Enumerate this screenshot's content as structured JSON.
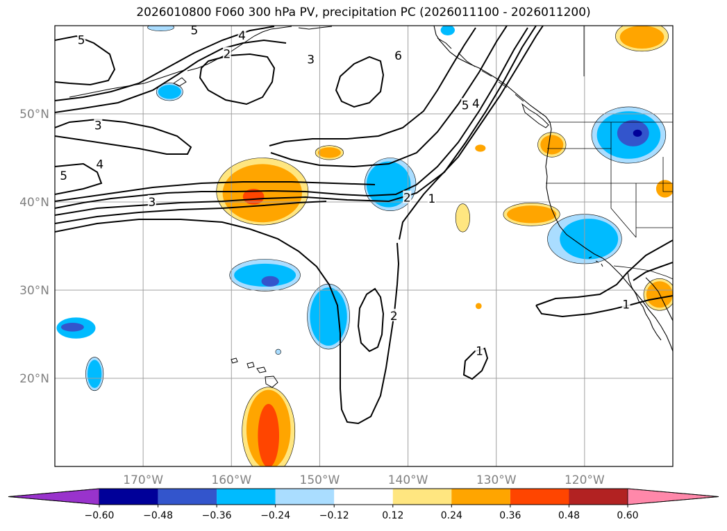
{
  "title": "2026010800 F060 300 hPa PV, precipitation PC (2026011100 - 2026011200)",
  "chart_data": {
    "type": "contour-map",
    "projection": "equirectangular",
    "lon_range": [
      -180,
      -110
    ],
    "lat_range": [
      10,
      60
    ],
    "grid": true,
    "lat_ticks": [
      {
        "lat": 50,
        "label": "50°N"
      },
      {
        "lat": 40,
        "label": "40°N"
      },
      {
        "lat": 30,
        "label": "30°N"
      },
      {
        "lat": 20,
        "label": "20°N"
      }
    ],
    "lon_ticks": [
      {
        "lon": -170,
        "label": "170°W"
      },
      {
        "lon": -160,
        "label": "160°W"
      },
      {
        "lon": -150,
        "label": "150°W"
      },
      {
        "lon": -140,
        "label": "140°W"
      },
      {
        "lon": -130,
        "label": "130°W"
      },
      {
        "lon": -120,
        "label": "120°W"
      }
    ],
    "colorbar": {
      "bounds": [
        -0.72,
        -0.6,
        -0.48,
        -0.36,
        -0.24,
        -0.12,
        0.12,
        0.24,
        0.36,
        0.48,
        0.6,
        0.72
      ],
      "colors": [
        "#9933cc",
        "#000099",
        "#3355cc",
        "#00bbff",
        "#aaddff",
        "#ffffff",
        "#ffe680",
        "#ffa500",
        "#ff4500",
        "#b22222",
        "#ff88aa"
      ],
      "extend": "both",
      "tick_values": [
        "−0.60",
        "−0.48",
        "−0.36",
        "−0.24",
        "−0.12",
        "0.12",
        "0.24",
        "0.36",
        "0.48",
        "0.60"
      ]
    },
    "pv_contour_labels": [
      {
        "text": "5",
        "lon": -177,
        "lat": 58.4
      },
      {
        "text": "5",
        "lon": -164.2,
        "lat": 59.5
      },
      {
        "text": "4",
        "lon": -158.8,
        "lat": 58.9
      },
      {
        "text": "2",
        "lon": -160.5,
        "lat": 56.8
      },
      {
        "text": "3",
        "lon": -151.0,
        "lat": 56.2
      },
      {
        "text": "6",
        "lon": -141.1,
        "lat": 56.6
      },
      {
        "text": "3",
        "lon": -175.1,
        "lat": 48.7
      },
      {
        "text": "4",
        "lon": -174.9,
        "lat": 44.3
      },
      {
        "text": "5",
        "lon": -179.0,
        "lat": 43.0
      },
      {
        "text": "3",
        "lon": -169.0,
        "lat": 40.0
      },
      {
        "text": "5",
        "lon": -133.5,
        "lat": 51.0
      },
      {
        "text": "4",
        "lon": -132.3,
        "lat": 51.2
      },
      {
        "text": "2",
        "lon": -140.1,
        "lat": 40.5
      },
      {
        "text": "1",
        "lon": -137.3,
        "lat": 40.4
      },
      {
        "text": "2",
        "lon": -141.6,
        "lat": 27.1
      },
      {
        "text": "1",
        "lon": -131.9,
        "lat": 23.1
      },
      {
        "text": "1",
        "lon": -115.3,
        "lat": 28.4
      }
    ],
    "precip_anomalies": [
      {
        "value": 0.3,
        "lon": -156.5,
        "lat": 41.0,
        "rlon": 4.5,
        "rlat": 3.3
      },
      {
        "value": 0.42,
        "lon": -157.5,
        "lat": 40.6,
        "rlon": 1.2,
        "rlat": 0.9
      },
      {
        "value": 0.18,
        "lon": -156.5,
        "lat": 41.2,
        "rlon": 5.2,
        "rlat": 3.8
      },
      {
        "value": -0.3,
        "lon": -142.2,
        "lat": 42.0,
        "rlon": 2.5,
        "rlat": 2.6
      },
      {
        "value": -0.18,
        "lon": -142.0,
        "lat": 42.0,
        "rlon": 2.9,
        "rlat": 3.0
      },
      {
        "value": -0.3,
        "lon": -149.0,
        "lat": 27.0,
        "rlon": 2.1,
        "rlat": 3.3
      },
      {
        "value": -0.18,
        "lon": -149.0,
        "lat": 27.0,
        "rlon": 2.4,
        "rlat": 3.7
      },
      {
        "value": -0.3,
        "lon": -156.2,
        "lat": 31.7,
        "rlon": 3.5,
        "rlat": 1.3
      },
      {
        "value": -0.42,
        "lon": -155.6,
        "lat": 31.0,
        "rlon": 1.0,
        "rlat": 0.6
      },
      {
        "value": -0.18,
        "lon": -156.2,
        "lat": 31.7,
        "rlon": 4.0,
        "rlat": 1.8
      },
      {
        "value": -0.3,
        "lon": -177.6,
        "lat": 25.7,
        "rlon": 2.2,
        "rlat": 1.2
      },
      {
        "value": -0.42,
        "lon": -178.0,
        "lat": 25.8,
        "rlon": 1.3,
        "rlat": 0.5
      },
      {
        "value": -0.3,
        "lon": -175.5,
        "lat": 20.5,
        "rlon": 0.8,
        "rlat": 1.6
      },
      {
        "value": -0.18,
        "lon": -175.5,
        "lat": 20.5,
        "rlon": 1.0,
        "rlat": 1.9
      },
      {
        "value": -0.3,
        "lon": -119.5,
        "lat": 35.8,
        "rlon": 3.3,
        "rlat": 2.3
      },
      {
        "value": -0.18,
        "lon": -120.0,
        "lat": 35.8,
        "rlon": 4.2,
        "rlat": 2.8
      },
      {
        "value": -0.3,
        "lon": -115.0,
        "lat": 47.6,
        "rlon": 3.6,
        "rlat": 2.7
      },
      {
        "value": -0.42,
        "lon": -114.5,
        "lat": 47.8,
        "rlon": 1.8,
        "rlat": 1.5
      },
      {
        "value": -0.54,
        "lon": -114.0,
        "lat": 47.8,
        "rlon": 0.5,
        "rlat": 0.4
      },
      {
        "value": -0.18,
        "lon": -115.0,
        "lat": 47.6,
        "rlon": 4.2,
        "rlat": 3.2
      },
      {
        "value": 0.3,
        "lon": -155.8,
        "lat": 14.2,
        "rlon": 2.5,
        "rlat": 4.5
      },
      {
        "value": 0.42,
        "lon": -155.8,
        "lat": 13.5,
        "rlon": 1.2,
        "rlat": 3.6
      },
      {
        "value": 0.18,
        "lon": -155.8,
        "lat": 14.0,
        "rlon": 3.0,
        "rlat": 5.0
      },
      {
        "value": 0.3,
        "lon": -126.0,
        "lat": 38.6,
        "rlon": 2.8,
        "rlat": 1.0
      },
      {
        "value": 0.18,
        "lon": -126.0,
        "lat": 38.6,
        "rlon": 3.2,
        "rlat": 1.3
      },
      {
        "value": 0.3,
        "lon": -111.5,
        "lat": 29.5,
        "rlon": 1.5,
        "rlat": 1.5
      },
      {
        "value": 0.18,
        "lon": -111.5,
        "lat": 29.5,
        "rlon": 1.8,
        "rlat": 1.8
      },
      {
        "value": 0.3,
        "lon": -113.5,
        "lat": 58.7,
        "rlon": 2.5,
        "rlat": 1.3
      },
      {
        "value": 0.18,
        "lon": -113.5,
        "lat": 58.8,
        "rlon": 3.0,
        "rlat": 1.7
      },
      {
        "value": 0.3,
        "lon": -123.7,
        "lat": 46.5,
        "rlon": 1.3,
        "rlat": 1.1
      },
      {
        "value": 0.18,
        "lon": -123.7,
        "lat": 46.5,
        "rlon": 1.6,
        "rlat": 1.4
      },
      {
        "value": 0.3,
        "lon": -131.8,
        "lat": 46.1,
        "rlon": 0.6,
        "rlat": 0.4
      },
      {
        "value": 0.3,
        "lon": -148.9,
        "lat": 45.6,
        "rlon": 1.3,
        "rlat": 0.6
      },
      {
        "value": 0.18,
        "lon": -148.9,
        "lat": 45.6,
        "rlon": 1.6,
        "rlat": 0.8
      },
      {
        "value": 0.18,
        "lon": -133.8,
        "lat": 38.2,
        "rlon": 0.8,
        "rlat": 1.6
      },
      {
        "value": 0.3,
        "lon": -132.0,
        "lat": 28.2,
        "rlon": 0.35,
        "rlat": 0.35
      },
      {
        "value": 0.3,
        "lon": -110.9,
        "lat": 41.5,
        "rlon": 1.0,
        "rlat": 1.0
      },
      {
        "value": -0.3,
        "lon": -167.0,
        "lat": 52.5,
        "rlon": 1.3,
        "rlat": 0.8
      },
      {
        "value": -0.18,
        "lon": -167.0,
        "lat": 52.5,
        "rlon": 1.5,
        "rlat": 1.0
      },
      {
        "value": -0.3,
        "lon": -135.5,
        "lat": 59.5,
        "rlon": 0.8,
        "rlat": 0.6
      },
      {
        "value": -0.18,
        "lon": -168.0,
        "lat": 59.8,
        "rlon": 1.5,
        "rlat": 0.4
      },
      {
        "value": -0.18,
        "lon": -154.7,
        "lat": 23.0,
        "rlon": 0.3,
        "rlat": 0.3
      }
    ]
  }
}
